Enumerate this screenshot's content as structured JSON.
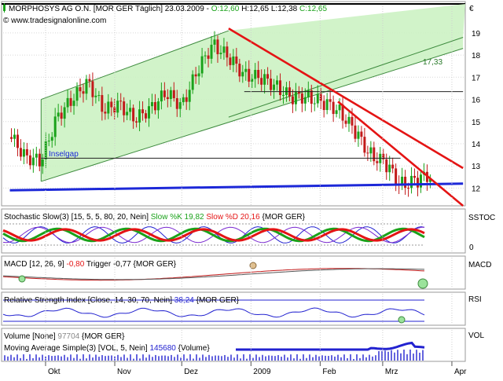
{
  "header": {
    "symbol": "MORPHOSYS AG O.N. [MOR GER  Täglich] 23.03.2009",
    "ohlc_prefix": " - ",
    "open": "O:12,60",
    "high": "H:12,65",
    "low": "L:12,38",
    "close": "C:12,65",
    "watermark": "© www.tradesignalonline.com",
    "currency": "€"
  },
  "chart_data": {
    "type": "line",
    "title": "MORPHOSYS AG O.N. [MOR GER  Täglich] 23.03.2009",
    "x_ticks": [
      "Okt",
      "Nov",
      "Dez",
      "2009",
      "Feb",
      "Mrz",
      "Apr"
    ],
    "y_ticks": [
      "12",
      "13",
      "14",
      "15",
      "16",
      "17",
      "18",
      "19"
    ],
    "ylim": [
      11.2,
      20.2
    ],
    "annotations": [
      "Inselgap",
      "17,33"
    ],
    "price_series": {
      "x": [
        "2008-09-15",
        "2008-09-22",
        "2008-09-29",
        "2008-10-06",
        "2008-10-13",
        "2008-10-20",
        "2008-10-27",
        "2008-11-03",
        "2008-11-10",
        "2008-11-17",
        "2008-11-24",
        "2008-12-01",
        "2008-12-08",
        "2008-12-15",
        "2008-12-22",
        "2008-12-29",
        "2009-01-05",
        "2009-01-12",
        "2009-01-19",
        "2009-01-26",
        "2009-02-02",
        "2009-02-09",
        "2009-02-16",
        "2009-02-23",
        "2009-03-02",
        "2009-03-09",
        "2009-03-16",
        "2009-03-23"
      ],
      "close": [
        14.3,
        13.5,
        13.1,
        15.3,
        15.9,
        16.9,
        15.4,
        15.9,
        15.0,
        15.7,
        16.2,
        15.8,
        17.2,
        18.6,
        17.8,
        17.2,
        16.9,
        16.7,
        16.0,
        16.2,
        15.8,
        15.6,
        14.6,
        13.6,
        13.1,
        12.2,
        12.3,
        12.65
      ]
    },
    "channel_lines": [
      {
        "x": [
          "2008-09-29",
          "2008-12-22"
        ],
        "y": [
          16.0,
          19.1
        ]
      },
      {
        "x": [
          "2008-09-29",
          "2009-04-06"
        ],
        "y": [
          12.3,
          18.3
        ]
      },
      {
        "x": [
          "2008-12-22",
          "2009-04-06"
        ],
        "y": [
          15.2,
          18.8
        ]
      }
    ],
    "trend_lines": [
      {
        "name": "",
        "x": [
          "2008-12-22",
          "2009-04-06"
        ],
        "y": [
          19.2,
          12.9
        ],
        "color": "#e41414"
      },
      {
        "name": "",
        "x": [
          "2009-02-09",
          "2009-04-06"
        ],
        "y": [
          15.9,
          11.2
        ],
        "color": "#e41414"
      }
    ],
    "support_line": {
      "x": [
        "2008-09-15",
        "2009-04-06"
      ],
      "y": [
        11.9,
        12.2
      ],
      "color": "#1c28d8"
    },
    "horizontal_lines": [
      {
        "y": 16.35,
        "x": [
          "2008-12-29",
          "2009-04-06"
        ]
      },
      {
        "y": 13.35,
        "x": [
          "2008-09-29",
          "2009-03-09"
        ]
      }
    ]
  },
  "indicators": {
    "stochastic": {
      "label": "Stochastic Slow(3) [15, 5, 5, 80, 20, Nein]",
      "k_label": "Slow %K 19,82",
      "d_label": "Slow %D 20,16",
      "symbol": "{MOR GER}",
      "axis_name": "SSTOC",
      "ticks": [
        "0"
      ]
    },
    "macd": {
      "label": "MACD [12, 26, 9]",
      "value": "-0,80",
      "trigger": "Trigger -0,77",
      "symbol": "{MOR GER}",
      "axis_name": "MACD"
    },
    "rsi": {
      "label": "Relative Strength Index [Close, 14, 30, 70, Nein]",
      "value": "38,24",
      "symbol": "{MOR GER}",
      "axis_name": "RSI"
    },
    "volume": {
      "label": "Volume [None]",
      "value": "97704",
      "symbol": "{MOR GER}",
      "ma_label": "Moving Average Simple(3) [VOL, 5, Nein]",
      "ma_value": "145680",
      "ma_unit": "{Volume}",
      "axis_name": "VOL"
    }
  },
  "colors": {
    "channel_fill": "#ccf2c3",
    "channel_line": "#3d8a3d",
    "trend_red": "#e41414",
    "support_blue": "#1c28d8",
    "candle_up": "#1aa21a",
    "candle_down": "#c21a1a",
    "indicator_blue": "#2222d0"
  }
}
